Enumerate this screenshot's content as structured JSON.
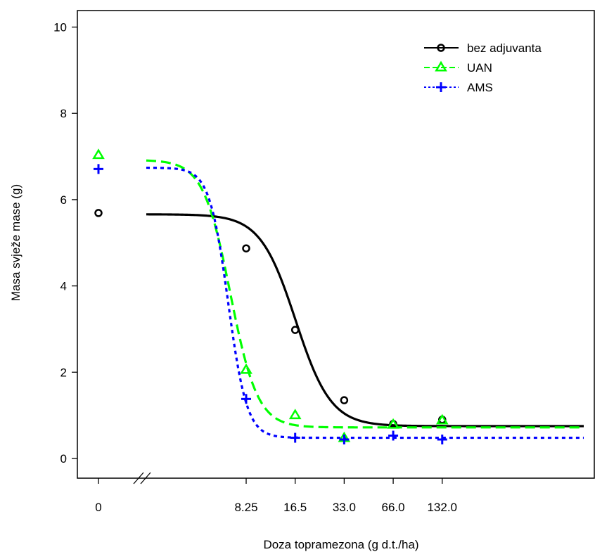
{
  "chart_data": {
    "type": "line",
    "xlabel": "Doza topramezona (g d.t./ha)",
    "ylabel": "Masa svježe mase (g)",
    "x_scale": "log",
    "axis_break": true,
    "ylim": [
      0,
      10
    ],
    "y_ticks": [
      "0",
      "2",
      "4",
      "6",
      "8",
      "10"
    ],
    "x_ticks": [
      {
        "value": 0,
        "label": "0"
      },
      {
        "value": 8.25,
        "label": "8.25"
      },
      {
        "value": 16.5,
        "label": "16.5"
      },
      {
        "value": 33.0,
        "label": "33.0"
      },
      {
        "value": 66.0,
        "label": "66.0"
      },
      {
        "value": 132.0,
        "label": "132.0"
      }
    ],
    "legend_position": "top-right",
    "series": [
      {
        "name": "bez adjuvanta",
        "color": "#000000",
        "marker": "circle",
        "line_style": "solid",
        "points": [
          {
            "x": 0,
            "y": 5.69
          },
          {
            "x": 8.25,
            "y": 4.87
          },
          {
            "x": 16.5,
            "y": 2.98
          },
          {
            "x": 33.0,
            "y": 1.35
          },
          {
            "x": 66.0,
            "y": 0.8
          },
          {
            "x": 132.0,
            "y": 0.9
          }
        ],
        "curve": {
          "lower": 0.75,
          "upper": 5.66,
          "ec50": 16.6,
          "slope": 4.0
        }
      },
      {
        "name": "UAN",
        "color": "#00ff00",
        "marker": "triangle",
        "line_style": "dashed",
        "points": [
          {
            "x": 0,
            "y": 7.03
          },
          {
            "x": 8.25,
            "y": 2.05
          },
          {
            "x": 16.5,
            "y": 1.0
          },
          {
            "x": 33.0,
            "y": 0.47
          },
          {
            "x": 66.0,
            "y": 0.78
          },
          {
            "x": 132.0,
            "y": 0.88
          }
        ],
        "curve": {
          "lower": 0.72,
          "upper": 6.92,
          "ec50": 6.6,
          "slope": 5.2
        }
      },
      {
        "name": "AMS",
        "color": "#0000ff",
        "marker": "plus",
        "line_style": "dotted",
        "points": [
          {
            "x": 0,
            "y": 6.71
          },
          {
            "x": 8.25,
            "y": 1.38
          },
          {
            "x": 16.5,
            "y": 0.48
          },
          {
            "x": 33.0,
            "y": 0.44
          },
          {
            "x": 66.0,
            "y": 0.53
          },
          {
            "x": 132.0,
            "y": 0.44
          }
        ],
        "curve": {
          "lower": 0.48,
          "upper": 6.74,
          "ec50": 6.4,
          "slope": 7.5
        }
      }
    ]
  }
}
